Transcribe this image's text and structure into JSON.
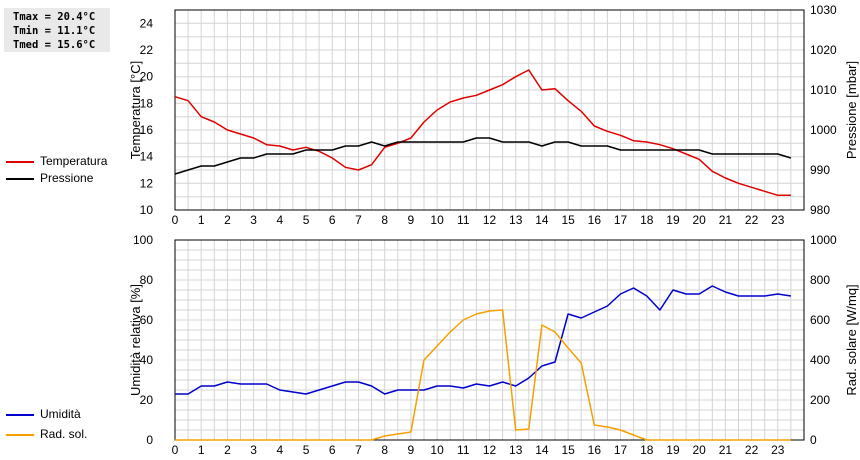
{
  "stats": {
    "tmax": "Tmax = 20.4°C",
    "tmin": "Tmin = 11.1°C",
    "tmed": "Tmed = 15.6°C"
  },
  "legend": {
    "top": [
      {
        "label": "Temperatura",
        "color": "#e00000"
      },
      {
        "label": "Pressione",
        "color": "#000000"
      }
    ],
    "bottom": [
      {
        "label": "Umidità",
        "color": "#0000cc"
      },
      {
        "label": "Rad. sol.",
        "color": "#f5a000"
      }
    ]
  },
  "chart_data": [
    {
      "type": "line",
      "xlim": [
        0,
        24
      ],
      "x_ticks": [
        "0",
        "1",
        "2",
        "3",
        "4",
        "5",
        "6",
        "7",
        "8",
        "9",
        "10",
        "11",
        "12",
        "13",
        "14",
        "15",
        "16",
        "17",
        "18",
        "19",
        "20",
        "21",
        "22",
        "23"
      ],
      "ylabel": "Temperatura [°C]",
      "ylim": [
        10,
        25
      ],
      "y_ticks": [
        10,
        12,
        14,
        16,
        18,
        20,
        22,
        24
      ],
      "y2label": "Pressione [mbar]",
      "y2lim": [
        980,
        1030
      ],
      "y2_ticks": [
        980,
        990,
        1000,
        1010,
        1020,
        1030
      ],
      "grid": true,
      "series": [
        {
          "name": "Temperatura",
          "axis": "left",
          "color": "#e00000",
          "x": [
            0,
            0.5,
            1,
            1.5,
            2,
            2.5,
            3,
            3.5,
            4,
            4.5,
            5,
            5.5,
            6,
            6.5,
            7,
            7.5,
            8,
            8.5,
            9,
            9.5,
            10,
            10.5,
            11,
            11.5,
            12,
            12.5,
            13,
            13.5,
            14,
            14.5,
            15,
            15.5,
            16,
            16.5,
            17,
            17.5,
            18,
            18.5,
            19,
            19.5,
            20,
            20.5,
            21,
            21.5,
            22,
            22.5,
            23,
            23.5
          ],
          "y": [
            18.5,
            18.2,
            17.0,
            16.6,
            16.0,
            15.7,
            15.4,
            14.9,
            14.8,
            14.5,
            14.7,
            14.4,
            13.9,
            13.2,
            13.0,
            13.4,
            14.7,
            15.0,
            15.4,
            16.6,
            17.5,
            18.1,
            18.4,
            18.6,
            19.0,
            19.4,
            20.0,
            20.5,
            19.0,
            19.1,
            18.2,
            17.4,
            16.3,
            15.9,
            15.6,
            15.2,
            15.1,
            14.9,
            14.6,
            14.2,
            13.8,
            12.9,
            12.4,
            12.0,
            11.7,
            11.4,
            11.1,
            11.1
          ]
        },
        {
          "name": "Pressione",
          "axis": "right",
          "color": "#000000",
          "x": [
            0,
            0.5,
            1,
            1.5,
            2,
            2.5,
            3,
            3.5,
            4,
            4.5,
            5,
            5.5,
            6,
            6.5,
            7,
            7.5,
            8,
            8.5,
            9,
            9.5,
            10,
            10.5,
            11,
            11.5,
            12,
            12.5,
            13,
            13.5,
            14,
            14.5,
            15,
            15.5,
            16,
            16.5,
            17,
            17.5,
            18,
            18.5,
            19,
            19.5,
            20,
            20.5,
            21,
            21.5,
            22,
            22.5,
            23,
            23.5
          ],
          "y": [
            989.0,
            990.0,
            991.0,
            991.0,
            992.0,
            993.0,
            993.0,
            994.0,
            994.0,
            994.0,
            995.0,
            995.0,
            995.0,
            996.0,
            996.0,
            997.0,
            996.0,
            997.0,
            997.0,
            997.0,
            997.0,
            997.0,
            997.0,
            998.0,
            998.0,
            997.0,
            997.0,
            997.0,
            996.0,
            997.0,
            997.0,
            996.0,
            996.0,
            996.0,
            995.0,
            995.0,
            995.0,
            995.0,
            995.0,
            995.0,
            995.0,
            994.0,
            994.0,
            994.0,
            994.0,
            994.0,
            994.0,
            993.0
          ]
        }
      ]
    },
    {
      "type": "line",
      "xlim": [
        0,
        24
      ],
      "x_ticks": [
        "0",
        "1",
        "2",
        "3",
        "4",
        "5",
        "6",
        "7",
        "8",
        "9",
        "10",
        "11",
        "12",
        "13",
        "14",
        "15",
        "16",
        "17",
        "18",
        "19",
        "20",
        "21",
        "22",
        "23"
      ],
      "ylabel": "Umidità relativa [%]",
      "ylim": [
        0,
        100
      ],
      "y_ticks": [
        0,
        20,
        40,
        60,
        80,
        100
      ],
      "y2label": "Rad. solare [W/mq]",
      "y2lim": [
        0,
        1000
      ],
      "y2_ticks": [
        0,
        200,
        400,
        600,
        800,
        1000
      ],
      "grid": true,
      "series": [
        {
          "name": "Umidità",
          "axis": "left",
          "color": "#0000cc",
          "x": [
            0,
            0.5,
            1,
            1.5,
            2,
            2.5,
            3,
            3.5,
            4,
            4.5,
            5,
            5.5,
            6,
            6.5,
            7,
            7.5,
            8,
            8.5,
            9,
            9.5,
            10,
            10.5,
            11,
            11.5,
            12,
            12.5,
            13,
            13.5,
            14,
            14.5,
            15,
            15.5,
            16,
            16.5,
            17,
            17.5,
            18,
            18.5,
            19,
            19.5,
            20,
            20.5,
            21,
            21.5,
            22,
            22.5,
            23,
            23.5
          ],
          "y": [
            23,
            23,
            27,
            27,
            29,
            28,
            28,
            28,
            25,
            24,
            23,
            25,
            27,
            29,
            29,
            27,
            23,
            25,
            25,
            25,
            27,
            27,
            26,
            28,
            27,
            29,
            27,
            31,
            37,
            39,
            63,
            61,
            64,
            67,
            73,
            76,
            72,
            65,
            75,
            73,
            73,
            77,
            74,
            72,
            72,
            72,
            73,
            72
          ]
        },
        {
          "name": "Rad. sol.",
          "axis": "right",
          "color": "#f5a000",
          "x": [
            0,
            7.5,
            8,
            8.5,
            9,
            9.5,
            10,
            10.5,
            11,
            11.5,
            12,
            12.5,
            13,
            13.5,
            14,
            14.5,
            15,
            15.5,
            16,
            16.5,
            17,
            17.5,
            18,
            23.5
          ],
          "y": [
            0,
            0,
            20,
            30,
            40,
            400,
            470,
            540,
            600,
            630,
            645,
            650,
            50,
            55,
            575,
            540,
            460,
            385,
            75,
            65,
            50,
            25,
            0,
            0
          ]
        }
      ]
    }
  ]
}
